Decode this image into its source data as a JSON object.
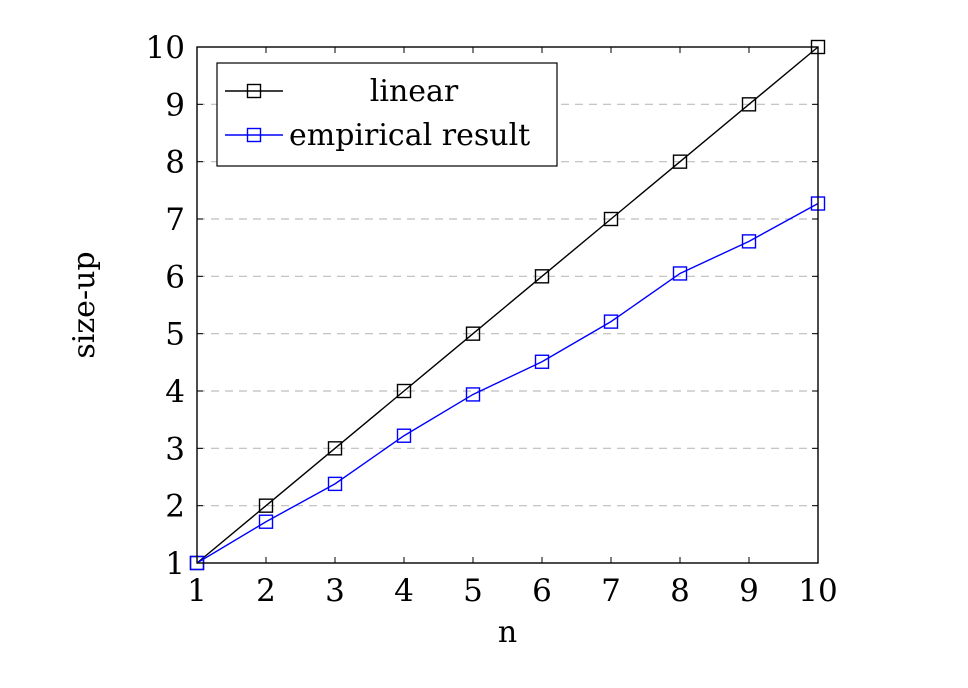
{
  "chart_data": {
    "type": "line",
    "title": "",
    "xlabel": "n",
    "ylabel": "size-up",
    "xlim": [
      1,
      10
    ],
    "ylim": [
      1,
      10
    ],
    "x_ticks": [
      1,
      2,
      3,
      4,
      5,
      6,
      7,
      8,
      9,
      10
    ],
    "y_ticks": [
      1,
      2,
      3,
      4,
      5,
      6,
      7,
      8,
      9,
      10
    ],
    "grid": "horizontal dashed",
    "legend_position": "top-left",
    "x": [
      1,
      2,
      3,
      4,
      5,
      6,
      7,
      8,
      9,
      10
    ],
    "series": [
      {
        "name": "linear",
        "color": "#000000",
        "marker": "square",
        "values": [
          1,
          2,
          3,
          4,
          5,
          6,
          7,
          8,
          9,
          10
        ]
      },
      {
        "name": "empirical result",
        "color": "#0000ff",
        "marker": "square",
        "values": [
          1,
          1.72,
          2.38,
          3.22,
          3.94,
          4.51,
          5.21,
          6.05,
          6.61,
          7.27
        ]
      }
    ]
  }
}
